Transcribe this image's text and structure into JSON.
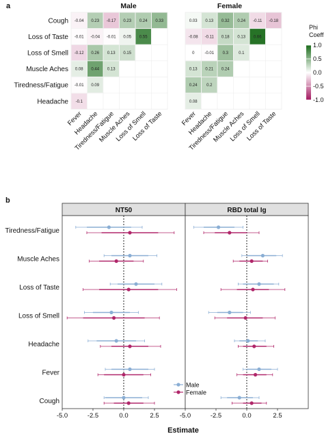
{
  "panel_a": {
    "label": "a",
    "titles": [
      "Male",
      "Female"
    ],
    "legend": {
      "title_line1": "Phi",
      "title_line2": "Coefficient",
      "ticks": [
        "1.0",
        "0.5",
        "0.0",
        "-0.5",
        "-1.0"
      ]
    },
    "colors": {
      "pos": "#1a6b1a",
      "neg": "#a3185f",
      "mid": "#ffffff"
    }
  },
  "panel_b": {
    "label": "b",
    "strips": [
      "NT50",
      "RBD total Ig"
    ],
    "xlabel": "Estimate",
    "xticks": [
      "-5.0",
      "-2.5",
      "0.0",
      "2.5"
    ],
    "legend": [
      {
        "name": "Male",
        "color": "#8aaed4"
      },
      {
        "name": "Female",
        "color": "#b0276a"
      }
    ]
  },
  "chart_data": [
    {
      "type": "heatmap",
      "title": "Male",
      "rows": [
        "Cough",
        "Loss of Taste",
        "Loss of Smell",
        "Muscle Aches",
        "Tiredness/Fatigue",
        "Headache"
      ],
      "cols": [
        "Fever",
        "Headache",
        "Tiredness/Fatigue",
        "Muscle Aches",
        "Loss of Smell",
        "Loss of Taste"
      ],
      "values": [
        [
          -0.04,
          0.23,
          -0.17,
          0.23,
          0.24,
          0.33
        ],
        [
          -0.01,
          -0.04,
          -0.01,
          0.05,
          0.55,
          null
        ],
        [
          -0.12,
          0.26,
          0.13,
          0.15,
          null,
          null
        ],
        [
          0.08,
          0.44,
          0.13,
          null,
          null,
          null
        ],
        [
          -0.01,
          0.09,
          null,
          null,
          null,
          null
        ],
        [
          -0.1,
          null,
          null,
          null,
          null,
          null
        ]
      ],
      "legend_title": "Phi Coefficient",
      "range": [
        -1.0,
        1.0
      ]
    },
    {
      "type": "heatmap",
      "title": "Female",
      "rows": [
        "Cough",
        "Loss of Taste",
        "Loss of Smell",
        "Muscle Aches",
        "Tiredness/Fatigue",
        "Headache"
      ],
      "cols": [
        "Fever",
        "Headache",
        "Tiredness/Fatigue",
        "Muscle Aches",
        "Loss of Smell",
        "Loss of Taste"
      ],
      "values": [
        [
          0.03,
          0.13,
          0.32,
          0.24,
          -0.11,
          -0.18
        ],
        [
          -0.08,
          -0.11,
          0.18,
          0.13,
          0.66,
          null
        ],
        [
          0,
          -0.01,
          0.3,
          0.1,
          null,
          null
        ],
        [
          0.13,
          0.21,
          0.24,
          null,
          null,
          null
        ],
        [
          0.24,
          0.2,
          null,
          null,
          null,
          null
        ],
        [
          0.08,
          null,
          null,
          null,
          null,
          null
        ]
      ],
      "legend_title": "Phi Coefficient",
      "range": [
        -1.0,
        1.0
      ]
    },
    {
      "type": "scatter",
      "title": "NT50",
      "xlabel": "Estimate",
      "xlim": [
        -5.0,
        5.0
      ],
      "categories": [
        "Tiredness/Fatigue",
        "Muscle Aches",
        "Loss of Taste",
        "Loss of Smell",
        "Headache",
        "Fever",
        "Cough"
      ],
      "series": [
        {
          "name": "Male",
          "estimate": [
            -1.2,
            0.5,
            1.0,
            -1.0,
            -0.6,
            0.5,
            0.0
          ],
          "ci_inner": [
            [
              -3.0,
              0.6
            ],
            [
              -1.0,
              2.0
            ],
            [
              -0.5,
              2.5
            ],
            [
              -2.5,
              0.5
            ],
            [
              -2.2,
              1.0
            ],
            [
              -1.0,
              2.0
            ],
            [
              -1.5,
              1.5
            ]
          ],
          "ci_outer": [
            [
              -3.9,
              1.5
            ],
            [
              -1.6,
              2.7
            ],
            [
              -1.1,
              3.1
            ],
            [
              -3.2,
              1.2
            ],
            [
              -2.9,
              1.7
            ],
            [
              -1.5,
              2.5
            ],
            [
              -1.6,
              2.0
            ]
          ]
        },
        {
          "name": "Female",
          "estimate": [
            0.5,
            -0.6,
            0.4,
            -0.8,
            0.5,
            0.0,
            0.4
          ],
          "ci_inner": [
            [
              -1.8,
              2.8
            ],
            [
              -2.0,
              0.8
            ],
            [
              -2.0,
              2.8
            ],
            [
              -3.3,
              1.7
            ],
            [
              -1.0,
              2.0
            ],
            [
              -1.6,
              1.6
            ],
            [
              -0.8,
              1.6
            ]
          ],
          "ci_outer": [
            [
              -3.0,
              4.1
            ],
            [
              -2.8,
              1.6
            ],
            [
              -3.3,
              4.3
            ],
            [
              -4.6,
              2.9
            ],
            [
              -1.9,
              3.0
            ],
            [
              -2.1,
              2.2
            ],
            [
              -1.6,
              2.5
            ]
          ]
        }
      ]
    },
    {
      "type": "scatter",
      "title": "RBD total Ig",
      "xlabel": "Estimate",
      "xlim": [
        -5.0,
        5.0
      ],
      "categories": [
        "Tiredness/Fatigue",
        "Muscle Aches",
        "Loss of Taste",
        "Loss of Smell",
        "Headache",
        "Fever",
        "Cough"
      ],
      "series": [
        {
          "name": "Male",
          "estimate": [
            -2.3,
            1.3,
            1.0,
            -1.4,
            0.1,
            1.0,
            -0.6
          ],
          "ci_inner": [
            [
              -3.5,
              -1.0
            ],
            [
              0.0,
              2.4
            ],
            [
              -0.3,
              2.2
            ],
            [
              -2.4,
              -0.3
            ],
            [
              -0.6,
              0.9
            ],
            [
              0.0,
              2.0
            ],
            [
              -1.6,
              0.5
            ]
          ],
          "ci_outer": [
            [
              -4.3,
              -0.3
            ],
            [
              -0.4,
              2.9
            ],
            [
              -0.7,
              2.6
            ],
            [
              -3.1,
              0.3
            ],
            [
              -1.0,
              1.5
            ],
            [
              -0.3,
              2.5
            ],
            [
              -2.1,
              1.0
            ]
          ]
        },
        {
          "name": "Female",
          "estimate": [
            -1.4,
            0.4,
            0.5,
            -0.1,
            0.6,
            0.7,
            0.4
          ],
          "ci_inner": [
            [
              -2.6,
              0.0
            ],
            [
              -0.6,
              1.3
            ],
            [
              -0.8,
              1.8
            ],
            [
              -1.6,
              1.3
            ],
            [
              -0.3,
              1.6
            ],
            [
              -0.3,
              1.6
            ],
            [
              -0.3,
              1.2
            ]
          ],
          "ci_outer": [
            [
              -3.5,
              1.0
            ],
            [
              -1.1,
              1.7
            ],
            [
              -2.1,
              3.1
            ],
            [
              -2.6,
              2.3
            ],
            [
              -0.7,
              2.2
            ],
            [
              -0.8,
              2.1
            ],
            [
              -1.2,
              1.6
            ]
          ]
        }
      ]
    }
  ]
}
